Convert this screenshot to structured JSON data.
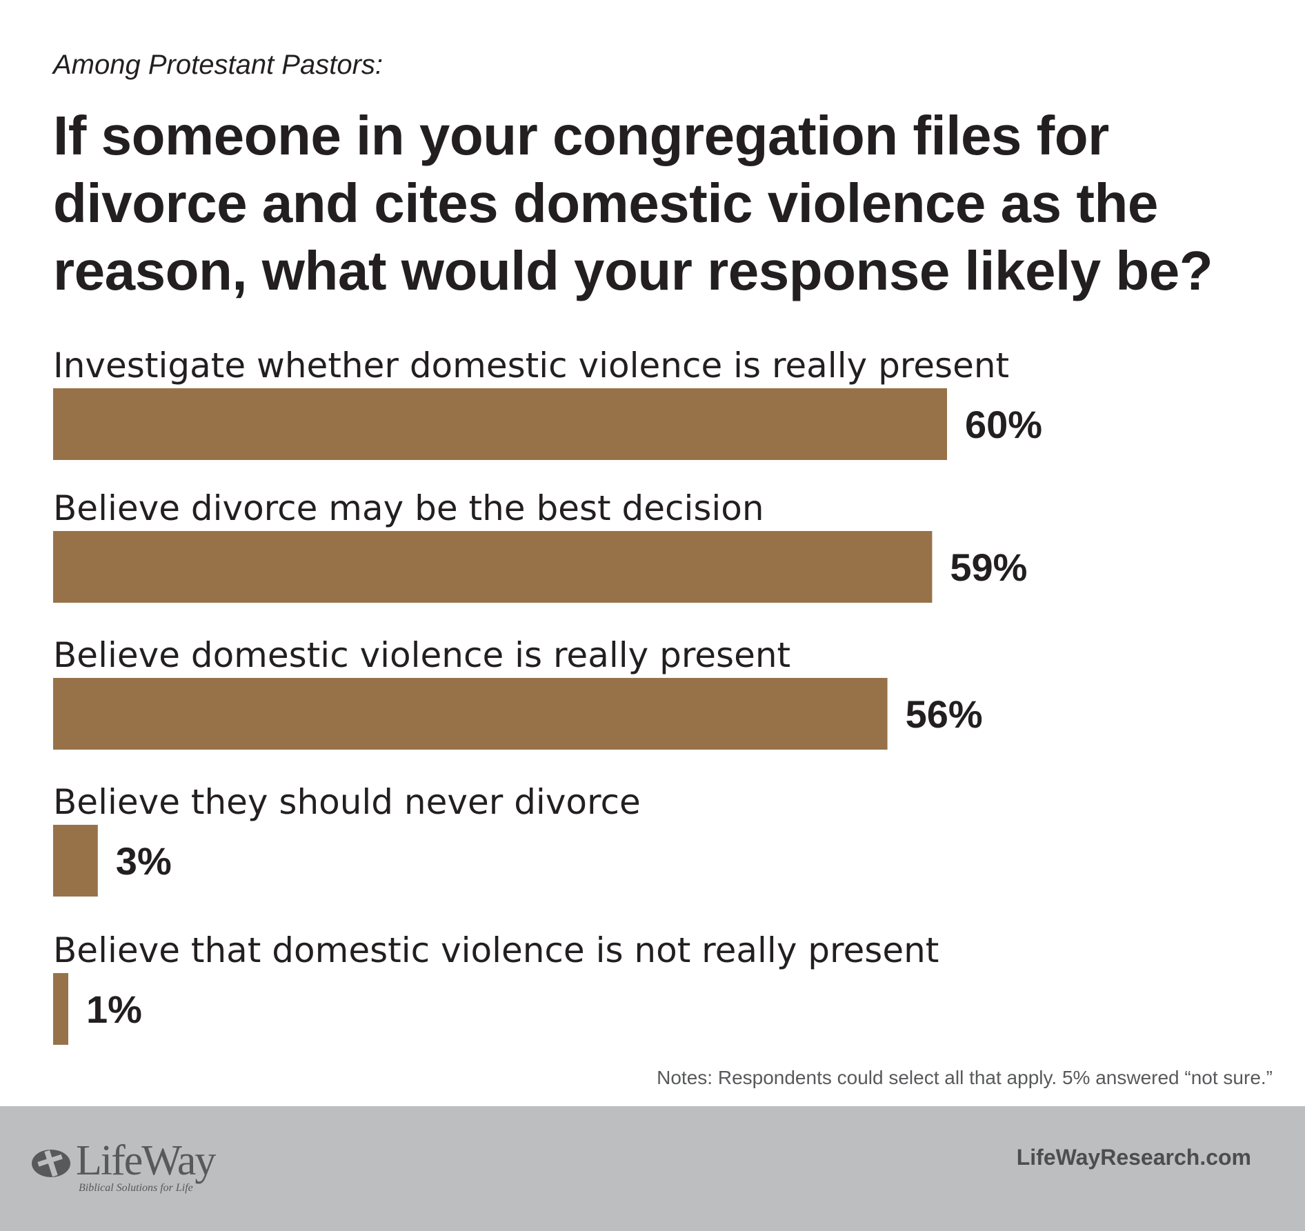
{
  "header": {
    "subtitle": "Among Protestant Pastors:",
    "title": "If someone in your congregation files for divorce and cites domestic violence as the reason, what would your response likely be?"
  },
  "chart_data": {
    "type": "bar",
    "orientation": "horizontal",
    "bar_color": "#977249",
    "categories": [
      "Investigate whether domestic violence is really present",
      "Believe divorce may be the best decision",
      "Believe domestic violence is really present",
      "Believe they should never divorce",
      "Believe that domestic violence is not really present"
    ],
    "values": [
      60,
      59,
      56,
      3,
      1
    ],
    "value_labels": [
      "60%",
      "59%",
      "56%",
      "3%",
      "1%"
    ],
    "unit": "%",
    "grid": false,
    "legend": "none"
  },
  "notes": "Notes: Respondents could select all that apply. 5% answered “not sure.”",
  "footer": {
    "logo_text": "LifeWay",
    "logo_tagline": "Biblical Solutions for Life",
    "website": "LifeWayResearch.com",
    "background": "#bcbec0"
  }
}
